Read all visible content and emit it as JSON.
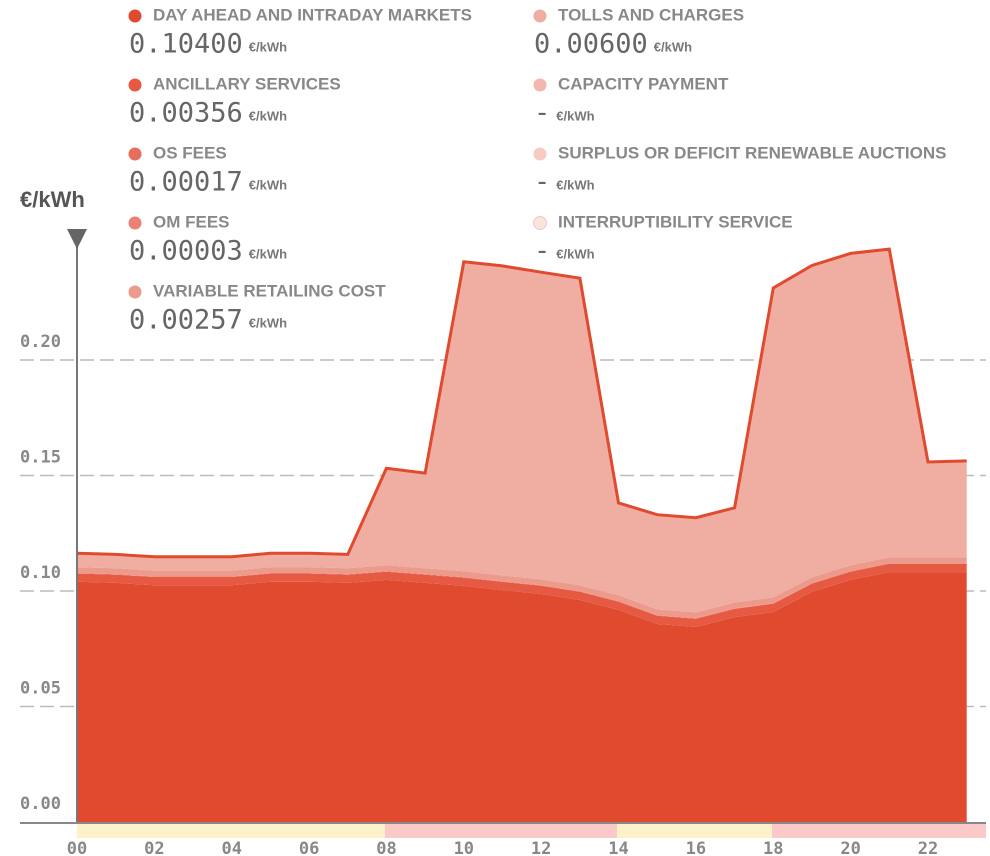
{
  "chart_data": {
    "type": "area",
    "stacked": true,
    "unit": "€/kWh",
    "x": [
      0,
      1,
      2,
      3,
      4,
      5,
      6,
      7,
      8,
      9,
      10,
      11,
      12,
      13,
      14,
      15,
      16,
      17,
      18,
      19,
      20,
      21,
      22,
      23
    ],
    "xlim": [
      0,
      23.5
    ],
    "xticks": [
      {
        "value": 0,
        "label": "00"
      },
      {
        "value": 2,
        "label": "02"
      },
      {
        "value": 4,
        "label": "04"
      },
      {
        "value": 6,
        "label": "06"
      },
      {
        "value": 8,
        "label": "08"
      },
      {
        "value": 10,
        "label": "10"
      },
      {
        "value": 12,
        "label": "12"
      },
      {
        "value": 14,
        "label": "14"
      },
      {
        "value": 16,
        "label": "16"
      },
      {
        "value": 18,
        "label": "18"
      },
      {
        "value": 20,
        "label": "20"
      },
      {
        "value": 22,
        "label": "22"
      }
    ],
    "ylim": [
      0,
      0.25
    ],
    "yticks": [
      {
        "value": 0,
        "label": "0.00"
      },
      {
        "value": 0.05,
        "label": "0.05"
      },
      {
        "value": 0.1,
        "label": "0.10"
      },
      {
        "value": 0.15,
        "label": "0.15"
      },
      {
        "value": 0.2,
        "label": "0.20"
      }
    ],
    "grid": true,
    "series": [
      {
        "name": "DAY AHEAD AND INTRADAY MARKETS",
        "color": "#e04a2f",
        "readout": "0.10400",
        "values": [
          0.104,
          0.1035,
          0.1025,
          0.1025,
          0.1025,
          0.104,
          0.104,
          0.1035,
          0.1048,
          0.1035,
          0.1022,
          0.1004,
          0.0987,
          0.0961,
          0.0918,
          0.0857,
          0.0844,
          0.0887,
          0.0909,
          0.0996,
          0.1048,
          0.1082,
          0.1082,
          0.1082
        ]
      },
      {
        "name": "ANCILLARY SERVICES",
        "color": "#e65942",
        "readout": "0.00356",
        "values": [
          0.00356,
          0.00356,
          0.00356,
          0.00356,
          0.00356,
          0.00356,
          0.00356,
          0.00356,
          0.00356,
          0.00356,
          0.00356,
          0.00356,
          0.00356,
          0.00356,
          0.00356,
          0.00356,
          0.00356,
          0.00356,
          0.00356,
          0.00356,
          0.00356,
          0.00356,
          0.00356,
          0.00356
        ]
      },
      {
        "name": "OS FEES",
        "color": "#e86e5c",
        "readout": "0.00017",
        "values": [
          0.00017,
          0.00017,
          0.00017,
          0.00017,
          0.00017,
          0.00017,
          0.00017,
          0.00017,
          0.00017,
          0.00017,
          0.00017,
          0.00017,
          0.00017,
          0.00017,
          0.00017,
          0.00017,
          0.00017,
          0.00017,
          0.00017,
          0.00017,
          0.00017,
          0.00017,
          0.00017,
          0.00017
        ]
      },
      {
        "name": "OM FEES",
        "color": "#ea8172",
        "readout": "0.00003",
        "values": [
          3e-05,
          3e-05,
          3e-05,
          3e-05,
          3e-05,
          3e-05,
          3e-05,
          3e-05,
          3e-05,
          3e-05,
          3e-05,
          3e-05,
          3e-05,
          3e-05,
          3e-05,
          3e-05,
          3e-05,
          3e-05,
          3e-05,
          3e-05,
          3e-05,
          3e-05,
          3e-05,
          3e-05
        ]
      },
      {
        "name": "VARIABLE RETAILING COST",
        "color": "#ec9a8c",
        "readout": "0.00257",
        "values": [
          0.00257,
          0.00257,
          0.00257,
          0.00257,
          0.00257,
          0.00257,
          0.00257,
          0.00257,
          0.00257,
          0.00257,
          0.00257,
          0.00257,
          0.00257,
          0.00257,
          0.00257,
          0.00257,
          0.00257,
          0.00257,
          0.00257,
          0.00257,
          0.00257,
          0.00257,
          0.00257,
          0.00257
        ]
      },
      {
        "name": "TOLLS AND CHARGES",
        "color": "#f0ada1",
        "readout": "0.00600",
        "values": [
          0.006,
          0.006,
          0.006,
          0.006,
          0.006,
          0.006,
          0.006,
          0.006,
          0.042,
          0.0412,
          0.134,
          0.134,
          0.133,
          0.133,
          0.04,
          0.041,
          0.041,
          0.041,
          0.134,
          0.135,
          0.135,
          0.1335,
          0.0413,
          0.0418
        ]
      },
      {
        "name": "CAPACITY PAYMENT",
        "color": "#f2b8ad",
        "readout": "-",
        "values": [
          null,
          null,
          null,
          null,
          null,
          null,
          null,
          null,
          null,
          null,
          null,
          null,
          null,
          null,
          null,
          null,
          null,
          null,
          null,
          null,
          null,
          null,
          null,
          null
        ]
      },
      {
        "name": "SURPLUS OR DEFICIT RENEWABLE AUCTIONS",
        "color": "#f5cbc3",
        "readout": "-",
        "values": [
          null,
          null,
          null,
          null,
          null,
          null,
          null,
          null,
          null,
          null,
          null,
          null,
          null,
          null,
          null,
          null,
          null,
          null,
          null,
          null,
          null,
          null,
          null,
          null
        ]
      },
      {
        "name": "INTERRUPTIBILITY SERVICE",
        "color": "#f9e4e0",
        "readout": "-",
        "values": [
          null,
          null,
          null,
          null,
          null,
          null,
          null,
          null,
          null,
          null,
          null,
          null,
          null,
          null,
          null,
          null,
          null,
          null,
          null,
          null,
          null,
          null,
          null,
          null
        ]
      }
    ]
  }
}
